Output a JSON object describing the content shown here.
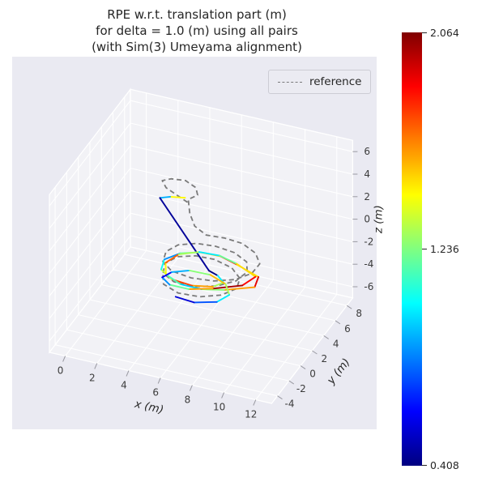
{
  "chart_data": {
    "type": "line",
    "subtype": "3d-trajectory-plot",
    "title": "RPE w.r.t. translation part (m)\nfor delta = 1.0 (m) using all pairs\n(with Sim(3) Umeyama alignment)",
    "xlabel": "x (m)",
    "ylabel": "y (m)",
    "zlabel": "z (m)",
    "xlim": [
      -1,
      13
    ],
    "ylim": [
      -5,
      9
    ],
    "zlim": [
      -7,
      7
    ],
    "xticks": [
      0,
      2,
      4,
      6,
      8,
      10,
      12
    ],
    "yticks": [
      -4,
      -2,
      0,
      2,
      4,
      6,
      8
    ],
    "zticks": [
      -6,
      -4,
      -2,
      0,
      2,
      4,
      6
    ],
    "grid": true,
    "legend": [
      {
        "label": "reference",
        "style": "dashed",
        "color": "#7a7a7a"
      }
    ],
    "legend_position": "upper right",
    "colorbar": {
      "colormap": "jet",
      "vmin": 0.408,
      "vmax": 2.064,
      "tick_labels": [
        "2.064",
        "1.236",
        "0.408"
      ],
      "tick_values": [
        2.064,
        1.236,
        0.408
      ]
    },
    "colors": {
      "figure_bg": "#ffffff",
      "axes_bg": "#eaeaf2",
      "pane": "#f2f2f6",
      "grid": "#ffffff",
      "reference": "#7a7a7a",
      "text": "#262626",
      "tick_text": "#3b3b3b",
      "legend_bg": "#ebebf2",
      "legend_border": "#ccccd4"
    },
    "series": [
      {
        "name": "reference",
        "points_xyz": [
          [
            4.2,
            4.6,
            1.6
          ],
          [
            3.4,
            4.9,
            1.8
          ],
          [
            2.6,
            5.3,
            1.9
          ],
          [
            2.1,
            6.0,
            1.9
          ],
          [
            2.4,
            6.7,
            1.7
          ],
          [
            3.2,
            7.0,
            1.6
          ],
          [
            4.0,
            6.6,
            1.5
          ],
          [
            4.4,
            5.8,
            1.5
          ],
          [
            4.1,
            5.0,
            1.55
          ],
          [
            4.6,
            3.9,
            1.2
          ],
          [
            5.2,
            3.1,
            0.8
          ],
          [
            6.0,
            2.9,
            0.4
          ],
          [
            7.0,
            3.3,
            0.2
          ],
          [
            8.1,
            3.4,
            0.0
          ],
          [
            9.1,
            2.9,
            -0.2
          ],
          [
            9.7,
            2.0,
            -0.35
          ],
          [
            9.6,
            0.9,
            -0.5
          ],
          [
            8.9,
            -0.1,
            -0.6
          ],
          [
            7.8,
            -0.75,
            -0.65
          ],
          [
            6.5,
            -1.05,
            -0.6
          ],
          [
            5.2,
            -0.9,
            -0.5
          ],
          [
            4.4,
            -0.2,
            -0.4
          ],
          [
            4.2,
            0.9,
            -0.3
          ],
          [
            4.6,
            1.9,
            -0.25
          ],
          [
            5.5,
            2.6,
            -0.3
          ],
          [
            6.6,
            2.9,
            -0.4
          ],
          [
            7.8,
            2.8,
            -0.5
          ],
          [
            8.8,
            2.2,
            -0.6
          ],
          [
            9.2,
            1.2,
            -0.7
          ],
          [
            8.9,
            0.1,
            -0.85
          ],
          [
            8.0,
            -0.8,
            -1.0
          ],
          [
            6.8,
            -1.3,
            -1.1
          ],
          [
            5.5,
            -1.3,
            -1.1
          ],
          [
            4.6,
            -0.7,
            -1.05
          ],
          [
            4.3,
            0.4,
            -1.0
          ],
          [
            4.7,
            1.5,
            -1.0
          ],
          [
            5.6,
            2.2,
            -1.1
          ],
          [
            6.7,
            2.4,
            -1.2
          ],
          [
            7.9,
            2.1,
            -1.35
          ],
          [
            8.7,
            1.3,
            -1.5
          ],
          [
            8.9,
            0.2,
            -1.6
          ],
          [
            8.3,
            -0.8,
            -1.7
          ],
          [
            7.2,
            -1.5,
            -1.75
          ],
          [
            5.9,
            -1.7,
            -1.7
          ],
          [
            4.8,
            -1.2,
            -1.6
          ],
          [
            4.4,
            -0.2,
            -1.5
          ]
        ]
      },
      {
        "name": "estimate_colored_by_rpe",
        "points_xyze": [
          [
            3.8,
            5.3,
            1.4,
            1.45
          ],
          [
            3.0,
            4.9,
            1.5,
            0.9
          ],
          [
            2.5,
            4.5,
            1.5,
            0.45
          ],
          [
            6.5,
            2.0,
            -2.0,
            0.41
          ],
          [
            7.3,
            1.3,
            -1.7,
            1.0
          ],
          [
            8.0,
            0.4,
            -1.5,
            1.3
          ],
          [
            7.7,
            -0.6,
            -1.3,
            1.6
          ],
          [
            6.6,
            -1.2,
            -1.15,
            1.75
          ],
          [
            5.3,
            -1.2,
            -1.0,
            1.35
          ],
          [
            4.4,
            -0.5,
            -0.9,
            1.05
          ],
          [
            4.2,
            0.6,
            -0.8,
            0.85
          ],
          [
            4.8,
            1.7,
            -0.8,
            1.2
          ],
          [
            5.8,
            2.4,
            -0.85,
            1.55
          ],
          [
            7.0,
            2.6,
            -0.95,
            1.8
          ],
          [
            8.2,
            2.2,
            -1.05,
            1.5
          ],
          [
            9.8,
            1.5,
            -1.15,
            1.9
          ],
          [
            10.0,
            0.3,
            -1.2,
            1.6
          ],
          [
            8.5,
            -0.85,
            -1.15,
            1.25
          ],
          [
            7.3,
            -1.5,
            -1.05,
            0.95
          ],
          [
            6.0,
            -1.6,
            -0.95,
            1.15
          ],
          [
            4.9,
            -1.05,
            -0.8,
            1.45
          ],
          [
            4.5,
            0.0,
            -0.6,
            1.7
          ],
          [
            4.9,
            1.15,
            -0.5,
            1.3
          ],
          [
            5.9,
            1.95,
            -0.5,
            1.0
          ],
          [
            7.1,
            2.2,
            -0.6,
            1.2
          ],
          [
            8.3,
            1.85,
            -0.7,
            1.5
          ],
          [
            9.8,
            1.0,
            -0.8,
            1.85
          ],
          [
            9.4,
            -0.2,
            -0.9,
            2.0
          ],
          [
            7.9,
            -1.2,
            -1.0,
            1.6
          ],
          [
            6.6,
            -1.75,
            -1.1,
            1.2
          ],
          [
            5.3,
            -1.5,
            -1.3,
            0.85
          ],
          [
            4.5,
            -0.6,
            -1.5,
            0.6
          ],
          [
            4.7,
            0.5,
            -1.7,
            0.9
          ],
          [
            5.5,
            1.4,
            -1.9,
            1.25
          ],
          [
            6.7,
            1.7,
            -2.1,
            1.55
          ],
          [
            7.8,
            1.3,
            -2.3,
            1.3
          ],
          [
            8.4,
            0.3,
            -2.4,
            1.0
          ],
          [
            8.0,
            -0.75,
            -2.45,
            0.75
          ],
          [
            6.8,
            -1.4,
            -2.45,
            0.55
          ],
          [
            5.6,
            -1.3,
            -2.4,
            0.8
          ]
        ]
      }
    ]
  }
}
